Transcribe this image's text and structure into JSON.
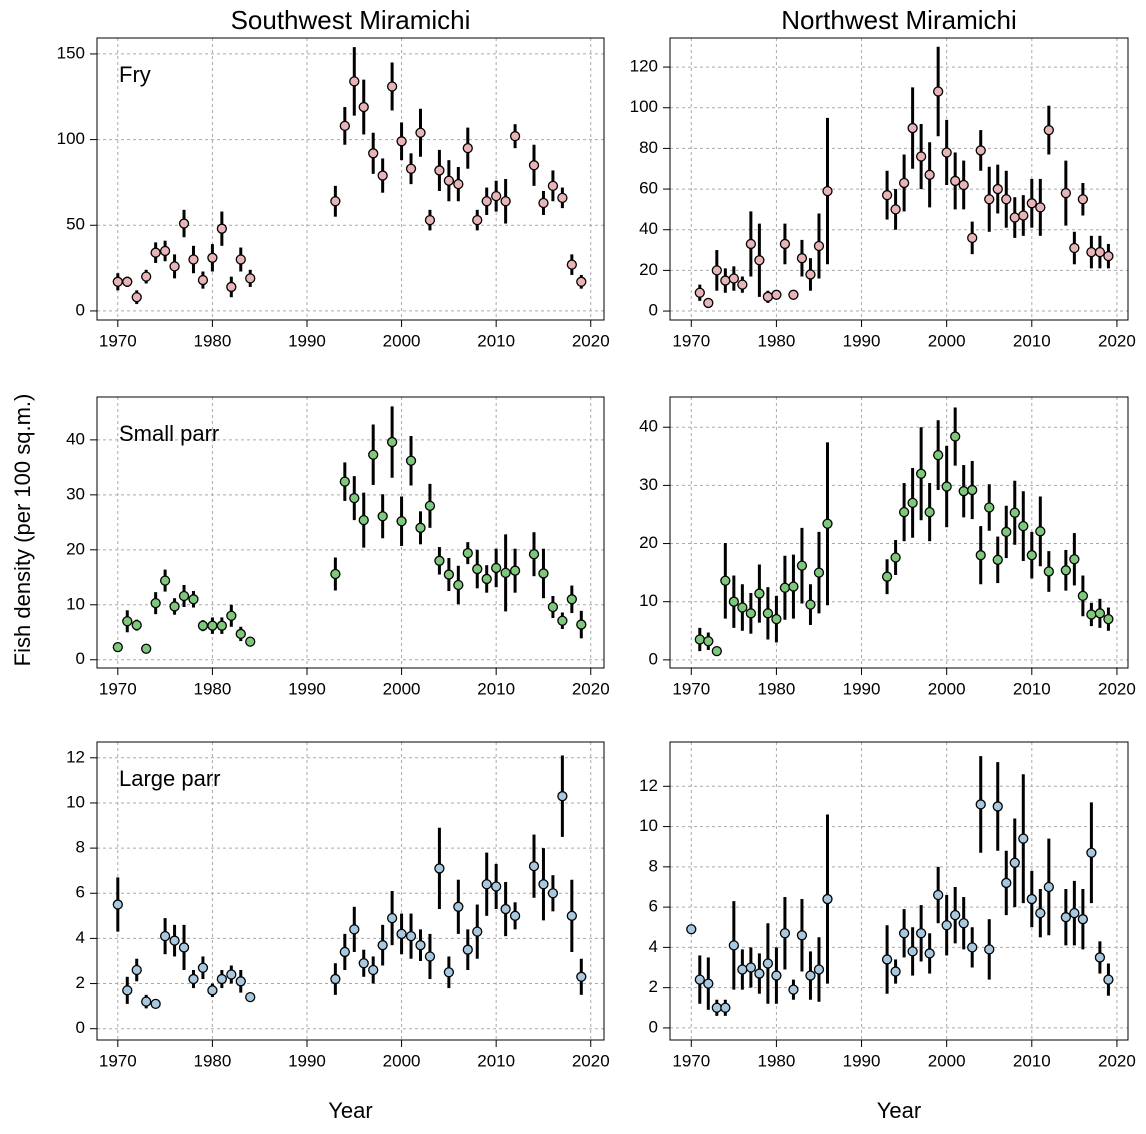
{
  "ylabel": "Fish density (per 100 sq.m.)",
  "chart_data": [
    {
      "type": "scatter",
      "title": "Southwest Miramichi",
      "annotation": "Fry",
      "color": "#e8b4b8",
      "x": [
        1970,
        1971,
        1972,
        1973,
        1974,
        1975,
        1976,
        1977,
        1978,
        1979,
        1980,
        1981,
        1982,
        1983,
        1984,
        1993,
        1994,
        1995,
        1996,
        1997,
        1998,
        1999,
        2000,
        2001,
        2002,
        2003,
        2004,
        2005,
        2006,
        2007,
        2008,
        2009,
        2010,
        2011,
        2012,
        2014,
        2015,
        2016,
        2017,
        2018,
        2019
      ],
      "values": [
        17,
        17,
        8,
        20,
        34,
        35,
        26,
        51,
        30,
        18,
        31,
        48,
        14,
        30,
        19,
        64,
        108,
        134,
        119,
        92,
        79,
        131,
        99,
        83,
        104,
        53,
        82,
        76,
        74,
        95,
        53,
        64,
        67,
        64,
        102,
        85,
        63,
        73,
        66,
        27,
        17
      ],
      "errors": [
        5,
        3,
        4,
        4,
        6,
        6,
        7,
        8,
        8,
        5,
        8,
        10,
        6,
        7,
        5,
        9,
        11,
        20,
        16,
        12,
        10,
        14,
        11,
        9,
        14,
        6,
        12,
        12,
        10,
        12,
        6,
        8,
        9,
        13,
        7,
        12,
        7,
        9,
        6,
        6,
        4
      ],
      "xlim": [
        1967.8,
        2021.4
      ],
      "xticks": [
        1970,
        1980,
        1990,
        2000,
        2010,
        2020
      ],
      "ylim": [
        -5.3,
        159.3
      ],
      "yticks": [
        0,
        50,
        100,
        150
      ],
      "grid": true
    },
    {
      "type": "scatter",
      "title": "Northwest Miramichi",
      "color": "#e8b4b8",
      "x": [
        1971,
        1972,
        1973,
        1974,
        1975,
        1976,
        1977,
        1978,
        1979,
        1980,
        1981,
        1982,
        1983,
        1984,
        1985,
        1986,
        1993,
        1994,
        1995,
        1996,
        1997,
        1998,
        1999,
        2000,
        2001,
        2002,
        2003,
        2004,
        2005,
        2006,
        2007,
        2008,
        2009,
        2010,
        2011,
        2012,
        2014,
        2015,
        2016,
        2017,
        2018,
        2019
      ],
      "values": [
        9,
        4,
        20,
        15,
        16,
        13,
        33,
        25,
        7,
        8,
        33,
        8,
        26,
        18,
        32,
        59,
        57,
        50,
        63,
        90,
        76,
        67,
        108,
        78,
        64,
        62,
        36,
        79,
        55,
        60,
        55,
        46,
        47,
        53,
        51,
        89,
        58,
        31,
        55,
        29,
        29,
        27
      ],
      "errors": [
        4,
        2,
        10,
        6,
        6,
        4,
        16,
        18,
        3,
        2,
        10,
        2,
        9,
        8,
        16,
        36,
        12,
        10,
        14,
        20,
        16,
        16,
        22,
        16,
        14,
        12,
        8,
        10,
        16,
        12,
        14,
        10,
        10,
        12,
        14,
        12,
        16,
        8,
        8,
        8,
        8,
        6
      ],
      "xlim": [
        1967.5,
        2021.3
      ],
      "xticks": [
        1970,
        1980,
        1990,
        2000,
        2010,
        2020
      ],
      "ylim": [
        -4.4,
        134.3
      ],
      "yticks": [
        0,
        20,
        40,
        60,
        80,
        100,
        120
      ],
      "grid": true
    },
    {
      "type": "scatter",
      "annotation": "Small parr",
      "color": "#7dc87a",
      "x": [
        1970,
        1971,
        1972,
        1973,
        1974,
        1975,
        1976,
        1977,
        1978,
        1979,
        1980,
        1981,
        1982,
        1983,
        1984,
        1993,
        1994,
        1995,
        1996,
        1997,
        1998,
        1999,
        2000,
        2001,
        2002,
        2003,
        2004,
        2005,
        2006,
        2007,
        2008,
        2009,
        2010,
        2011,
        2012,
        2014,
        2015,
        2016,
        2017,
        2018,
        2019
      ],
      "values": [
        2.3,
        7,
        6.3,
        2,
        10.3,
        14.4,
        9.7,
        11.6,
        11,
        6.2,
        6.2,
        6.2,
        8,
        4.7,
        3.3,
        15.6,
        32.4,
        29.4,
        25.4,
        37.3,
        26.1,
        39.6,
        25.2,
        36.2,
        24,
        28,
        18,
        15.5,
        13.6,
        19.4,
        16.5,
        14.7,
        16.7,
        15.8,
        16.2,
        19.2,
        15.7,
        9.6,
        7.1,
        11,
        6.4
      ],
      "errors": [
        0.5,
        2,
        1,
        0.6,
        2,
        2,
        1.5,
        2,
        1.5,
        1,
        1.5,
        1.5,
        2,
        1.3,
        0.6,
        3,
        3.5,
        4,
        5,
        5.5,
        4,
        6.5,
        4.5,
        4.5,
        3,
        4,
        2.5,
        3,
        3.5,
        2,
        3.5,
        2.5,
        3.5,
        7,
        4,
        4,
        4.5,
        2,
        1.5,
        2.5,
        2.5
      ],
      "xlim": [
        1967.8,
        2021.4
      ],
      "xticks": [
        1970,
        1980,
        1990,
        2000,
        2010,
        2020
      ],
      "ylim": [
        -1.5,
        47.8
      ],
      "yticks": [
        0,
        10,
        20,
        30,
        40
      ],
      "grid": true
    },
    {
      "type": "scatter",
      "color": "#7dc87a",
      "x": [
        1971,
        1972,
        1973,
        1974,
        1975,
        1976,
        1977,
        1978,
        1979,
        1980,
        1981,
        1982,
        1983,
        1984,
        1985,
        1986,
        1993,
        1994,
        1995,
        1996,
        1997,
        1998,
        1999,
        2000,
        2001,
        2002,
        2003,
        2004,
        2005,
        2006,
        2007,
        2008,
        2009,
        2010,
        2011,
        2012,
        2014,
        2015,
        2016,
        2017,
        2018,
        2019
      ],
      "values": [
        3.5,
        3.2,
        1.5,
        13.6,
        10,
        9,
        8,
        11.4,
        8,
        7,
        12.4,
        12.6,
        16.2,
        9.5,
        15,
        23.4,
        14.3,
        17.6,
        25.4,
        27,
        32,
        25.4,
        35.2,
        29.8,
        38.4,
        29,
        29.2,
        18,
        26.2,
        17.2,
        22,
        25.3,
        23,
        18,
        22.1,
        15.2,
        15.4,
        17.3,
        11,
        7.8,
        8,
        7
      ],
      "errors": [
        2,
        1.5,
        0.7,
        6.5,
        4.5,
        4,
        3.5,
        5,
        4.5,
        4,
        5.5,
        5.5,
        6.5,
        3.5,
        7,
        14,
        3,
        3,
        5,
        6,
        8,
        5,
        6,
        7,
        5,
        4.5,
        5,
        5,
        4,
        4,
        4.5,
        5.5,
        6,
        4,
        6,
        3.5,
        3.5,
        4.5,
        3.5,
        2,
        2.5,
        2
      ],
      "xlim": [
        1967.5,
        2021.3
      ],
      "xticks": [
        1970,
        1980,
        1990,
        2000,
        2010,
        2020
      ],
      "ylim": [
        -1.4,
        45.2
      ],
      "yticks": [
        0,
        10,
        20,
        30,
        40
      ],
      "grid": true
    },
    {
      "type": "scatter",
      "annotation": "Large parr",
      "xlabel": "Year",
      "color": "#a8c8e0",
      "x": [
        1970,
        1971,
        1972,
        1973,
        1974,
        1975,
        1976,
        1977,
        1978,
        1979,
        1980,
        1981,
        1982,
        1983,
        1984,
        1993,
        1994,
        1995,
        1996,
        1997,
        1998,
        1999,
        2000,
        2001,
        2002,
        2003,
        2004,
        2005,
        2006,
        2007,
        2008,
        2009,
        2010,
        2011,
        2012,
        2014,
        2015,
        2016,
        2017,
        2018,
        2019
      ],
      "values": [
        5.5,
        1.7,
        2.6,
        1.2,
        1.1,
        4.1,
        3.9,
        3.6,
        2.2,
        2.7,
        1.7,
        2.2,
        2.4,
        2.1,
        1.4,
        2.2,
        3.4,
        4.4,
        2.9,
        2.6,
        3.7,
        4.9,
        4.2,
        4.1,
        3.7,
        3.2,
        7.1,
        2.5,
        5.4,
        3.5,
        4.3,
        6.4,
        6.3,
        5.3,
        5,
        7.2,
        6.4,
        6,
        10.3,
        5,
        2.3
      ],
      "errors": [
        1.2,
        0.6,
        0.5,
        0.3,
        0.2,
        0.8,
        0.7,
        1,
        0.4,
        0.5,
        0.3,
        0.4,
        0.4,
        0.5,
        0.2,
        0.7,
        0.8,
        1,
        0.6,
        0.6,
        0.9,
        1.2,
        0.9,
        1,
        0.7,
        1,
        1.8,
        0.7,
        1.2,
        0.9,
        1.2,
        1.4,
        1,
        1.2,
        0.6,
        1.4,
        1.6,
        0.8,
        1.8,
        1.6,
        0.8
      ],
      "xlim": [
        1967.8,
        2021.4
      ],
      "xticks": [
        1970,
        1980,
        1990,
        2000,
        2010,
        2020
      ],
      "ylim": [
        -0.5,
        12.7
      ],
      "yticks": [
        0,
        2,
        4,
        6,
        8,
        10,
        12
      ],
      "grid": true
    },
    {
      "type": "scatter",
      "xlabel": "Year",
      "color": "#a8c8e0",
      "x": [
        1970,
        1971,
        1972,
        1973,
        1974,
        1975,
        1976,
        1977,
        1978,
        1979,
        1980,
        1981,
        1982,
        1983,
        1984,
        1985,
        1986,
        1993,
        1994,
        1995,
        1996,
        1997,
        1998,
        1999,
        2000,
        2001,
        2002,
        2003,
        2004,
        2005,
        2006,
        2007,
        2008,
        2009,
        2010,
        2011,
        2012,
        2014,
        2015,
        2016,
        2017,
        2018,
        2019
      ],
      "values": [
        4.9,
        2.4,
        2.2,
        1,
        1,
        4.1,
        2.9,
        3,
        2.7,
        3.2,
        2.6,
        4.7,
        1.9,
        4.6,
        2.6,
        2.9,
        6.4,
        3.4,
        2.8,
        4.7,
        3.8,
        4.7,
        3.7,
        6.6,
        5.1,
        5.6,
        5.2,
        4,
        11.1,
        3.9,
        11,
        7.2,
        8.2,
        9.4,
        6.4,
        5.7,
        7,
        5.5,
        5.7,
        5.4,
        8.7,
        3.5,
        2.4
      ],
      "errors": [
        0.1,
        1.2,
        1.3,
        0.4,
        0.4,
        2.2,
        1,
        1,
        1,
        2,
        1.4,
        1.8,
        0.5,
        1.8,
        1.2,
        1.6,
        4.2,
        1.7,
        0.6,
        1.2,
        1.2,
        1.4,
        1,
        1.4,
        1.5,
        1.4,
        1.3,
        1,
        2.4,
        1.5,
        2.2,
        1.6,
        2.2,
        3.2,
        1.4,
        1.2,
        2.4,
        1.4,
        1.6,
        1.5,
        2.5,
        0.8,
        0.8
      ],
      "xlim": [
        1967.5,
        2021.3
      ],
      "xticks": [
        1970,
        1980,
        1990,
        2000,
        2010,
        2020
      ],
      "ylim": [
        -0.6,
        14.2
      ],
      "yticks": [
        0,
        2,
        4,
        6,
        8,
        10,
        12
      ],
      "grid": true
    }
  ]
}
